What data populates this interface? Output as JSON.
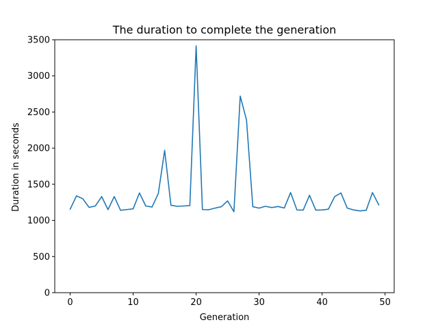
{
  "chart_data": {
    "type": "line",
    "title": "The duration to complete the generation",
    "xlabel": "Generation",
    "ylabel": "Duration in seconds",
    "xlim": [
      -2.45,
      51.45
    ],
    "ylim": [
      0,
      3500
    ],
    "xticks": [
      0,
      10,
      20,
      30,
      40,
      50
    ],
    "yticks": [
      0,
      500,
      1000,
      1500,
      2000,
      2500,
      3000,
      3500
    ],
    "grid": false,
    "line_color": "#1f77b4",
    "series": [
      {
        "x": [
          0,
          1,
          2,
          3,
          4,
          5,
          6,
          7,
          8,
          9,
          10,
          11,
          12,
          13,
          14,
          15,
          16,
          17,
          18,
          19,
          20,
          21,
          22,
          23,
          24,
          25,
          26,
          27,
          28,
          29,
          30,
          31,
          32,
          33,
          34,
          35,
          36,
          37,
          38,
          39,
          40,
          41,
          42,
          43,
          44,
          45,
          46,
          47,
          48,
          49
        ],
        "values": [
          1155,
          1340,
          1300,
          1180,
          1200,
          1330,
          1150,
          1330,
          1140,
          1150,
          1160,
          1380,
          1200,
          1185,
          1375,
          1970,
          1210,
          1195,
          1200,
          1205,
          3415,
          1150,
          1148,
          1170,
          1190,
          1270,
          1120,
          2720,
          2390,
          1190,
          1170,
          1195,
          1178,
          1192,
          1172,
          1385,
          1145,
          1142,
          1348,
          1142,
          1145,
          1155,
          1330,
          1380,
          1170,
          1145,
          1132,
          1140,
          1385,
          1215
        ]
      }
    ]
  }
}
